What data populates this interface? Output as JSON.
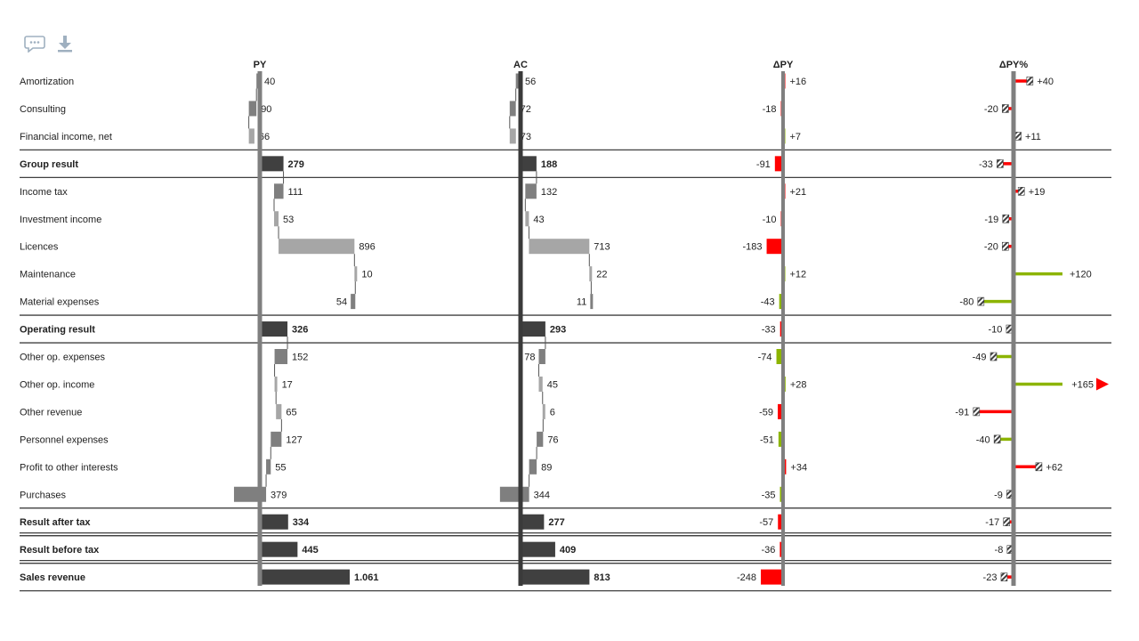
{
  "toolbar": {
    "comment_icon": "comment-icon",
    "download_icon": "download-icon"
  },
  "colors": {
    "total": "#404040",
    "inc": "#a6a6a6",
    "dec": "#7f7f7f",
    "good": "#8cb400",
    "bad": "#ff0000",
    "axis": "#7f7f7f",
    "line": "#404040",
    "highlight": "#5555cc"
  },
  "chart_data": {
    "type": "table",
    "columns": [
      "PY",
      "AC",
      "ΔPY",
      "ΔPY%"
    ],
    "rows": [
      {
        "label": "Amortization",
        "py": "40",
        "ac": "56",
        "dpy": "+16",
        "dpct": "+40",
        "py_v": 40,
        "ac_v": 56,
        "dpy_v": 16,
        "dpct_v": 40,
        "good": false,
        "sign": -1
      },
      {
        "label": "Consulting",
        "py": "90",
        "ac": "72",
        "dpy": "-18",
        "dpct": "-20",
        "py_v": 90,
        "ac_v": 72,
        "dpy_v": -18,
        "dpct_v": -20,
        "good": false,
        "sign": -1
      },
      {
        "label": "Financial income, net",
        "py": "66",
        "ac": "73",
        "dpy": "+7",
        "dpct": "+11",
        "py_v": 66,
        "ac_v": 73,
        "dpy_v": 7,
        "dpct_v": 11,
        "good": true,
        "sign": 1
      },
      {
        "label": "Group result",
        "py": "279",
        "ac": "188",
        "dpy": "-91",
        "dpct": "-33",
        "py_v": 279,
        "ac_v": 188,
        "dpy_v": -91,
        "dpct_v": -33,
        "good": false,
        "total": true
      },
      {
        "label": "Income tax",
        "py": "111",
        "ac": "132",
        "dpy": "+21",
        "dpct": "+19",
        "py_v": 111,
        "ac_v": 132,
        "dpy_v": 21,
        "dpct_v": 19,
        "good": false,
        "sign": -1
      },
      {
        "label": "Investment income",
        "py": "53",
        "ac": "43",
        "dpy": "-10",
        "dpct": "-19",
        "py_v": 53,
        "ac_v": 43,
        "dpy_v": -10,
        "dpct_v": -19,
        "good": false,
        "sign": 1
      },
      {
        "label": "Licences",
        "py": "896",
        "ac": "713",
        "dpy": "-183",
        "dpct": "-20",
        "py_v": 896,
        "ac_v": 713,
        "dpy_v": -183,
        "dpct_v": -20,
        "good": false,
        "sign": 1
      },
      {
        "label": "Maintenance",
        "py": "10",
        "ac": "22",
        "dpy": "+12",
        "dpct": "+120",
        "py_v": 10,
        "ac_v": 22,
        "dpy_v": 12,
        "dpct_v": 120,
        "good": true,
        "sign": 1,
        "outlier": true
      },
      {
        "label": "Material expenses",
        "py": "54",
        "ac": "11",
        "dpy": "-43",
        "dpct": "-80",
        "py_v": 54,
        "ac_v": 11,
        "dpy_v": -43,
        "dpct_v": -80,
        "good": true,
        "sign": -1
      },
      {
        "label": "Operating result",
        "py": "326",
        "ac": "293",
        "dpy": "-33",
        "dpct": "-10",
        "py_v": 326,
        "ac_v": 293,
        "dpy_v": -33,
        "dpct_v": -10,
        "good": false,
        "total": true
      },
      {
        "label": "Other op. expenses",
        "py": "152",
        "ac": "78",
        "dpy": "-74",
        "dpct": "-49",
        "py_v": 152,
        "ac_v": 78,
        "dpy_v": -74,
        "dpct_v": -49,
        "good": true,
        "sign": -1
      },
      {
        "label": "Other op. income",
        "py": "17",
        "ac": "45",
        "dpy": "+28",
        "dpct": "+165",
        "py_v": 17,
        "ac_v": 45,
        "dpy_v": 28,
        "dpct_v": 165,
        "good": true,
        "sign": 1,
        "outlier": true
      },
      {
        "label": "Other revenue",
        "py": "65",
        "ac": "6",
        "dpy": "-59",
        "dpct": "-91",
        "py_v": 65,
        "ac_v": 6,
        "dpy_v": -59,
        "dpct_v": -91,
        "good": false,
        "sign": 1
      },
      {
        "label": "Personnel expenses",
        "py": "127",
        "ac": "76",
        "dpy": "-51",
        "dpct": "-40",
        "py_v": 127,
        "ac_v": 76,
        "dpy_v": -51,
        "dpct_v": -40,
        "good": true,
        "sign": -1
      },
      {
        "label": "Profit to other interests",
        "py": "55",
        "ac": "89",
        "dpy": "+34",
        "dpct": "+62",
        "py_v": 55,
        "ac_v": 89,
        "dpy_v": 34,
        "dpct_v": 62,
        "good": false,
        "sign": -1
      },
      {
        "label": "Purchases",
        "py": "379",
        "ac": "344",
        "dpy": "-35",
        "dpct": "-9",
        "py_v": 379,
        "ac_v": 344,
        "dpy_v": -35,
        "dpct_v": -9,
        "good": true,
        "sign": -1
      },
      {
        "label": "Result after tax",
        "py": "334",
        "ac": "277",
        "dpy": "-57",
        "dpct": "-17",
        "py_v": 334,
        "ac_v": 277,
        "dpy_v": -57,
        "dpct_v": -17,
        "good": false,
        "total": true
      },
      {
        "label": "Result before tax",
        "py": "445",
        "ac": "409",
        "dpy": "-36",
        "dpct": "-8",
        "py_v": 445,
        "ac_v": 409,
        "dpy_v": -36,
        "dpct_v": -8,
        "good": false,
        "total": true
      },
      {
        "label": "Sales revenue",
        "py": "1.061",
        "ac": "813",
        "dpy": "-248",
        "dpct": "-23",
        "py_v": 1061,
        "ac_v": 813,
        "dpy_v": -248,
        "dpct_v": -23,
        "good": false,
        "total": true
      }
    ]
  }
}
